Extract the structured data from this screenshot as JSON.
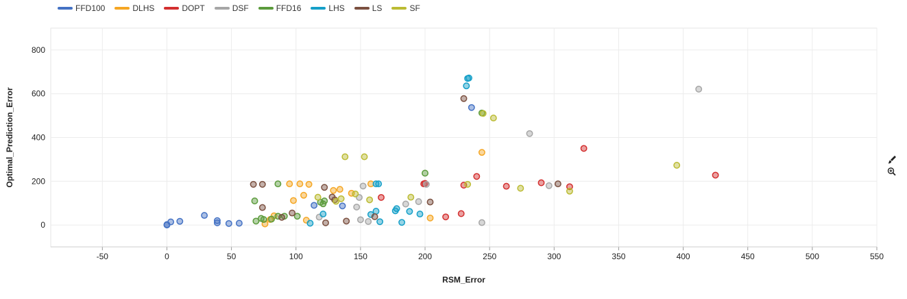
{
  "legend": [
    {
      "name": "FFD100",
      "color": "#4472C4"
    },
    {
      "name": "DLHS",
      "color": "#F5A623"
    },
    {
      "name": "DOPT",
      "color": "#D32F2F"
    },
    {
      "name": "DSF",
      "color": "#A6A6A6"
    },
    {
      "name": "FFD16",
      "color": "#5B9B3C"
    },
    {
      "name": "LHS",
      "color": "#159FC8"
    },
    {
      "name": "LS",
      "color": "#7B5040"
    },
    {
      "name": "SF",
      "color": "#BBBB33"
    }
  ],
  "tools": {
    "brush_icon": "brush-icon",
    "zoom_icon": "zoom-in-icon"
  },
  "chart_data": {
    "type": "scatter",
    "xlabel": "RSM_Error",
    "ylabel": "Optimal_Prediction_Error",
    "xlim": [
      -90,
      550
    ],
    "ylim": [
      -100,
      900
    ],
    "xticks": [
      -50,
      0,
      50,
      100,
      150,
      200,
      250,
      300,
      350,
      400,
      450,
      500,
      550
    ],
    "yticks": [
      0,
      200,
      400,
      600,
      800
    ],
    "grid": true,
    "legend_position": "top-left",
    "series": [
      {
        "name": "FFD100",
        "color": "#4472C4",
        "points": [
          [
            0,
            0
          ],
          [
            0,
            2
          ],
          [
            3,
            14
          ],
          [
            10,
            17
          ],
          [
            29,
            44
          ],
          [
            39,
            10
          ],
          [
            39,
            20
          ],
          [
            48,
            7
          ],
          [
            56,
            8
          ],
          [
            114,
            90
          ],
          [
            136,
            87
          ],
          [
            236,
            537
          ]
        ]
      },
      {
        "name": "DLHS",
        "color": "#F5A623",
        "points": [
          [
            76,
            5
          ],
          [
            80,
            25
          ],
          [
            83,
            42
          ],
          [
            95,
            188
          ],
          [
            98,
            112
          ],
          [
            103,
            188
          ],
          [
            106,
            136
          ],
          [
            108,
            22
          ],
          [
            110,
            186
          ],
          [
            129,
            158
          ],
          [
            134,
            163
          ],
          [
            143,
            145
          ],
          [
            158,
            188
          ],
          [
            204,
            32
          ],
          [
            244,
            332
          ]
        ]
      },
      {
        "name": "DOPT",
        "color": "#D32F2F",
        "points": [
          [
            166,
            126
          ],
          [
            199,
            188
          ],
          [
            200,
            190
          ],
          [
            216,
            37
          ],
          [
            228,
            52
          ],
          [
            230,
            182
          ],
          [
            240,
            222
          ],
          [
            263,
            177
          ],
          [
            290,
            193
          ],
          [
            312,
            175
          ],
          [
            323,
            350
          ],
          [
            425,
            228
          ]
        ]
      },
      {
        "name": "DSF",
        "color": "#A6A6A6",
        "points": [
          [
            118,
            36
          ],
          [
            147,
            82
          ],
          [
            149,
            126
          ],
          [
            150,
            24
          ],
          [
            152,
            178
          ],
          [
            156,
            16
          ],
          [
            185,
            96
          ],
          [
            195,
            107
          ],
          [
            201,
            186
          ],
          [
            244,
            11
          ],
          [
            281,
            418
          ],
          [
            296,
            180
          ],
          [
            412,
            621
          ]
        ]
      },
      {
        "name": "FFD16",
        "color": "#5B9B3C",
        "points": [
          [
            68,
            110
          ],
          [
            69,
            18
          ],
          [
            73,
            30
          ],
          [
            75,
            25
          ],
          [
            81,
            27
          ],
          [
            86,
            188
          ],
          [
            86,
            40
          ],
          [
            91,
            40
          ],
          [
            101,
            40
          ],
          [
            119,
            104
          ],
          [
            121,
            97
          ],
          [
            122,
            110
          ],
          [
            200,
            237
          ],
          [
            244,
            512
          ]
        ]
      },
      {
        "name": "LHS",
        "color": "#159FC8",
        "points": [
          [
            111,
            8
          ],
          [
            121,
            50
          ],
          [
            158,
            48
          ],
          [
            162,
            188
          ],
          [
            162,
            63
          ],
          [
            164,
            188
          ],
          [
            165,
            15
          ],
          [
            177,
            65
          ],
          [
            178,
            75
          ],
          [
            182,
            12
          ],
          [
            188,
            62
          ],
          [
            196,
            50
          ],
          [
            232,
            636
          ],
          [
            233,
            670
          ],
          [
            234,
            672
          ]
        ]
      },
      {
        "name": "LS",
        "color": "#7B5040",
        "points": [
          [
            67,
            186
          ],
          [
            74,
            186
          ],
          [
            74,
            80
          ],
          [
            89,
            35
          ],
          [
            97,
            55
          ],
          [
            122,
            172
          ],
          [
            123,
            10
          ],
          [
            128,
            128
          ],
          [
            130,
            115
          ],
          [
            139,
            18
          ],
          [
            161,
            38
          ],
          [
            204,
            105
          ],
          [
            230,
            578
          ],
          [
            303,
            188
          ]
        ]
      },
      {
        "name": "SF",
        "color": "#BBBB33",
        "points": [
          [
            117,
            127
          ],
          [
            131,
            108
          ],
          [
            135,
            120
          ],
          [
            138,
            312
          ],
          [
            146,
            142
          ],
          [
            153,
            312
          ],
          [
            157,
            115
          ],
          [
            189,
            127
          ],
          [
            233,
            186
          ],
          [
            245,
            510
          ],
          [
            253,
            489
          ],
          [
            274,
            168
          ],
          [
            312,
            155
          ],
          [
            395,
            273
          ]
        ]
      }
    ]
  }
}
